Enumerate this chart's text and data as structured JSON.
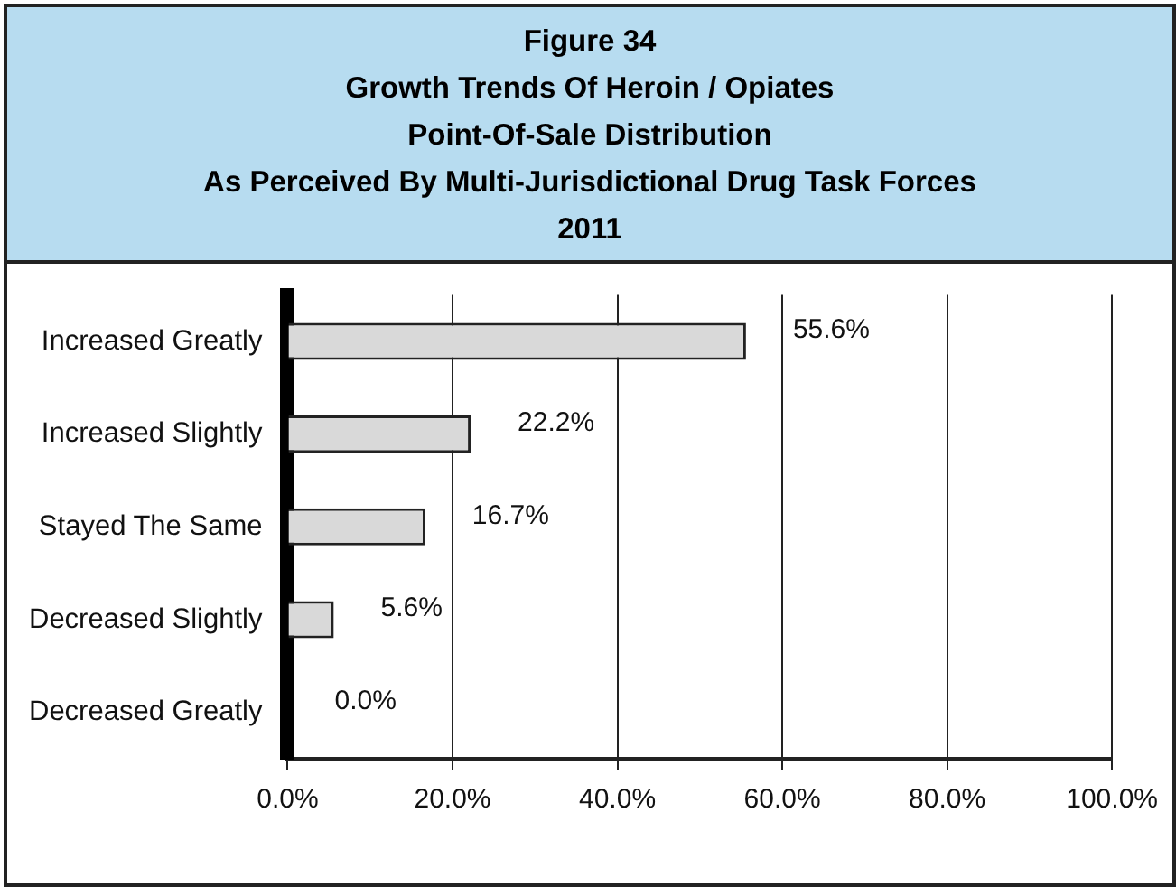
{
  "chart_data": {
    "type": "bar",
    "orientation": "horizontal",
    "title": "Figure 34\nGrowth Trends Of Heroin / Opiates\nPoint-Of-Sale Distribution\nAs Perceived By Multi-Jurisdictional Drug Task Forces\n2011",
    "categories": [
      "Increased Greatly",
      "Increased Slightly",
      "Stayed The Same",
      "Decreased Slightly",
      "Decreased Greatly"
    ],
    "values": [
      55.6,
      22.2,
      16.7,
      5.6,
      0.0
    ],
    "value_labels": [
      "55.6%",
      "22.2%",
      "16.7%",
      "5.6%",
      "0.0%"
    ],
    "color": "#d9d9d9",
    "xlim": [
      0,
      100
    ],
    "xticks": [
      {
        "value": 0,
        "label": "0.0%"
      },
      {
        "value": 20,
        "label": "20.0%"
      },
      {
        "value": 40,
        "label": "40.0%"
      },
      {
        "value": 60,
        "label": "60.0%"
      },
      {
        "value": 80,
        "label": "80.0%"
      },
      {
        "value": 100,
        "label": "100.0%"
      }
    ],
    "grid": "x",
    "legend": false
  }
}
